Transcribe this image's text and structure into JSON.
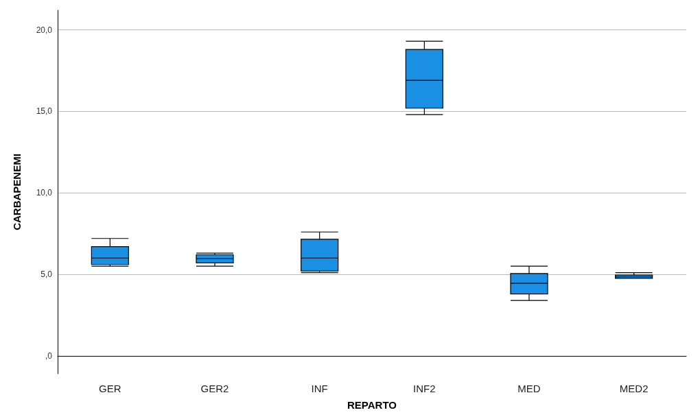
{
  "chart_data": {
    "type": "box",
    "xlabel": "REPARTO",
    "ylabel": "CARBAPENEMI",
    "categories": [
      "GER",
      "GER2",
      "INF",
      "INF2",
      "MED",
      "MED2"
    ],
    "color": "#1a8fe3",
    "boxes": [
      {
        "low": 5.5,
        "q1": 5.6,
        "median": 6.0,
        "q3": 6.7,
        "high": 7.2
      },
      {
        "low": 5.5,
        "q1": 5.7,
        "median": 5.95,
        "q3": 6.2,
        "high": 6.3
      },
      {
        "low": 5.1,
        "q1": 5.2,
        "median": 6.0,
        "q3": 7.15,
        "high": 7.6
      },
      {
        "low": 14.8,
        "q1": 15.2,
        "median": 16.9,
        "q3": 18.8,
        "high": 19.3
      },
      {
        "low": 3.4,
        "q1": 3.8,
        "median": 4.45,
        "q3": 5.05,
        "high": 5.5
      },
      {
        "low": 4.75,
        "q1": 4.75,
        "median": 4.85,
        "q3": 4.95,
        "high": 5.1
      }
    ],
    "ylim": [
      -1.1,
      21.2
    ],
    "yticks": [
      {
        "value": 0,
        "label": ",0"
      },
      {
        "value": 5,
        "label": "5,0"
      },
      {
        "value": 10,
        "label": "10,0"
      },
      {
        "value": 15,
        "label": "15,0"
      },
      {
        "value": 20,
        "label": "20,0"
      }
    ],
    "grid": "y"
  }
}
